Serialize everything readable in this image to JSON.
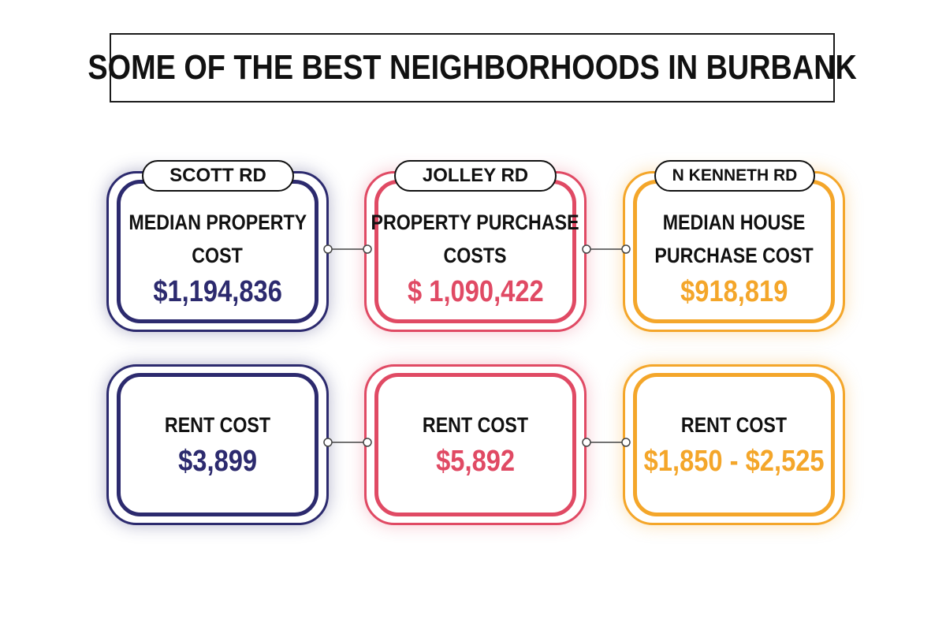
{
  "title": "SOME OF THE BEST NEIGHBORHOODS IN BURBANK",
  "colors": {
    "navy": "#2c2a6e",
    "red": "#e04a64",
    "orange": "#f4a62a"
  },
  "neighborhoods": [
    {
      "name": "SCOTT RD",
      "purchase_label_line1": "MEDIAN PROPERTY",
      "purchase_label_line2": "COST",
      "purchase_value": "$1,194,836",
      "rent_label": "RENT COST",
      "rent_value": "$3,899"
    },
    {
      "name": "JOLLEY RD",
      "purchase_label_line1": "PROPERTY PURCHASE",
      "purchase_label_line2": "COSTS",
      "purchase_value": "$ 1,090,422",
      "rent_label": "RENT COST",
      "rent_value": "$5,892"
    },
    {
      "name": "N KENNETH RD",
      "purchase_label_line1": "MEDIAN HOUSE",
      "purchase_label_line2": "PURCHASE COST",
      "purchase_value": "$918,819",
      "rent_label": "RENT COST",
      "rent_value": "$1,850 - $2,525"
    }
  ]
}
